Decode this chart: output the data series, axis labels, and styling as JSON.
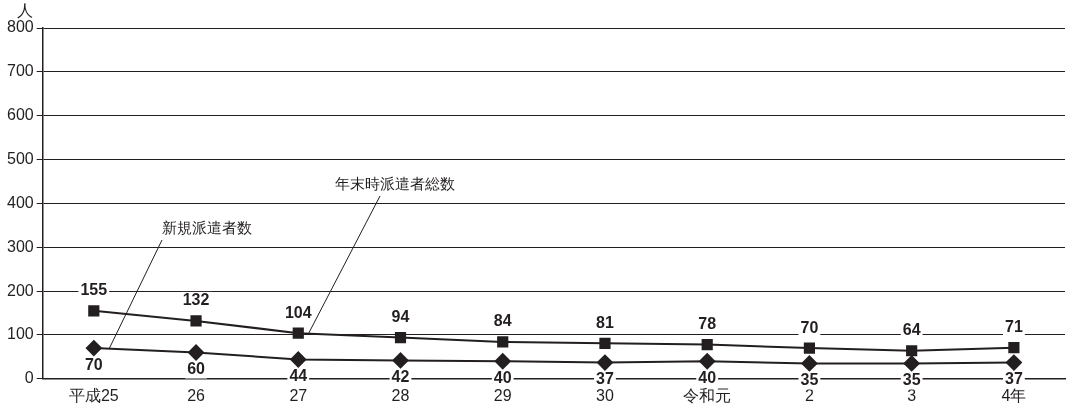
{
  "chart_data": {
    "type": "line",
    "ylabel": "人",
    "categories": [
      "平成25",
      "26",
      "27",
      "28",
      "29",
      "30",
      "令和元",
      "2",
      "3",
      "4年"
    ],
    "series": [
      {
        "name": "年末時派遣者総数",
        "color": "#231f20",
        "marker": "square",
        "values": [
          155,
          132,
          104,
          94,
          84,
          81,
          78,
          70,
          64,
          71
        ]
      },
      {
        "name": "新規派遣者数",
        "color": "#231f20",
        "marker": "diamond",
        "values": [
          70,
          60,
          44,
          42,
          40,
          37,
          40,
          35,
          35,
          37
        ]
      }
    ],
    "ylim": [
      0,
      800
    ],
    "yticks": [
      0,
      100,
      200,
      300,
      400,
      500,
      600,
      700,
      800
    ],
    "grid": "y",
    "legend": false,
    "data_labels": true
  }
}
